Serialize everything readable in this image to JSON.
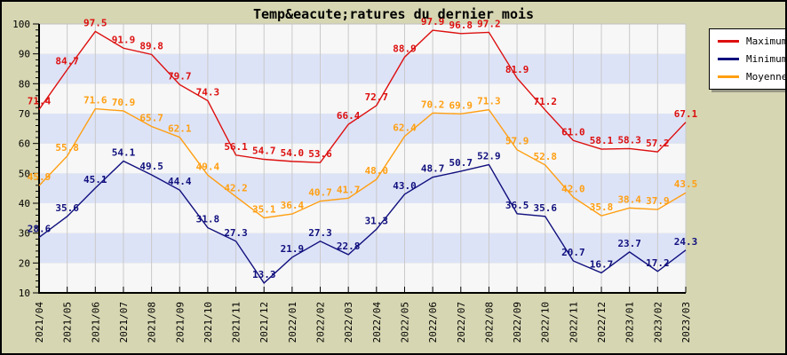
{
  "chart_data": {
    "type": "line",
    "title": "Temp&eacute;ratures du dernier mois",
    "xlabel": "",
    "ylabel": "",
    "x": [
      "2021/04",
      "2021/05",
      "2021/06",
      "2021/07",
      "2021/08",
      "2021/09",
      "2021/10",
      "2021/11",
      "2021/12",
      "2022/01",
      "2022/02",
      "2022/03",
      "2022/04",
      "2022/05",
      "2022/06",
      "2022/07",
      "2022/08",
      "2022/09",
      "2022/10",
      "2022/11",
      "2022/12",
      "2023/01",
      "2023/02",
      "2023/03"
    ],
    "series": [
      {
        "name": "Maximum",
        "color": "#dd0f0f",
        "values": [
          71.4,
          84.7,
          97.5,
          91.9,
          89.8,
          79.7,
          74.3,
          56.1,
          54.7,
          54.0,
          53.6,
          66.4,
          72.7,
          88.9,
          97.9,
          96.8,
          97.2,
          81.9,
          71.2,
          61.0,
          58.1,
          58.3,
          57.2,
          67.1
        ]
      },
      {
        "name": "Minimum",
        "color": "#10107e",
        "values": [
          28.6,
          35.6,
          45.1,
          54.1,
          49.5,
          44.4,
          31.8,
          27.3,
          13.3,
          21.9,
          27.3,
          22.8,
          31.3,
          43.0,
          48.7,
          50.7,
          52.9,
          36.5,
          35.6,
          20.7,
          16.7,
          23.7,
          17.2,
          24.3
        ]
      },
      {
        "name": "Moyenne",
        "color": "#ff9f12",
        "values": [
          45.9,
          55.8,
          71.6,
          70.9,
          65.7,
          62.1,
          49.4,
          42.2,
          35.1,
          36.4,
          40.7,
          41.7,
          48.0,
          62.4,
          70.2,
          69.9,
          71.3,
          57.9,
          52.8,
          42.0,
          35.8,
          38.4,
          37.9,
          43.5
        ]
      }
    ],
    "ylim": [
      10,
      100
    ],
    "yticks": [
      10,
      20,
      30,
      40,
      50,
      60,
      70,
      80,
      90,
      100
    ],
    "ytick_minor_step": 2,
    "value_labels": true,
    "grid": "vertical",
    "legend_position": "top-right",
    "colors": {
      "background": "#d6d6b2",
      "plot_band_light": "#f7f7f7",
      "plot_band_dark": "#dde3f7",
      "gridline": "#c9c9c9",
      "plot_top_border": "#c0c0c0",
      "axis": "#000000",
      "tick_text": "#000000",
      "title_text": "#000000"
    }
  }
}
